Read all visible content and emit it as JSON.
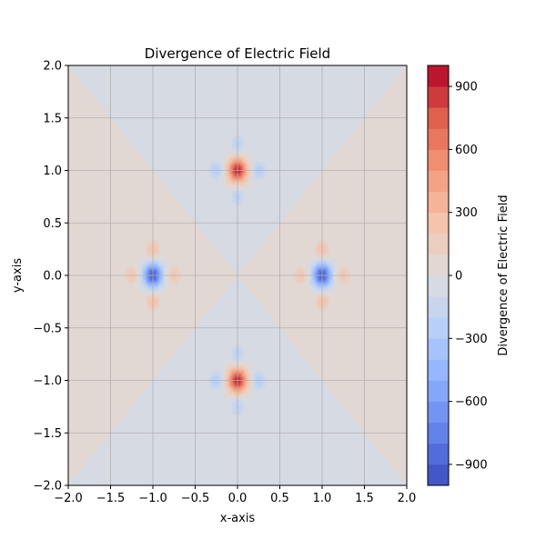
{
  "chart_data": {
    "type": "heatmap",
    "title": "Divergence of Electric Field",
    "xlabel": "x-axis",
    "ylabel": "y-axis",
    "xlim": [
      -2,
      2
    ],
    "ylim": [
      -2,
      2
    ],
    "x_ticks": [
      -2.0,
      -1.5,
      -1.0,
      -0.5,
      0.0,
      0.5,
      1.0,
      1.5,
      2.0
    ],
    "y_ticks": [
      -2.0,
      -1.5,
      -1.0,
      -0.5,
      0.0,
      0.5,
      1.0,
      1.5,
      2.0
    ],
    "x_tick_labels": [
      "−2.0",
      "−1.5",
      "−1.0",
      "−0.5",
      "0.0",
      "0.5",
      "1.0",
      "1.5",
      "2.0"
    ],
    "y_tick_labels": [
      "−2.0",
      "−1.5",
      "−1.0",
      "−0.5",
      "0.0",
      "0.5",
      "1.0",
      "1.5",
      "2.0"
    ],
    "grid": true,
    "colormap": "coolwarm",
    "colorbar": {
      "label": "Divergence of Electric Field",
      "range": [
        -1000,
        1000
      ],
      "ticks": [
        -900,
        -600,
        -300,
        0,
        300,
        600,
        900
      ],
      "tick_labels": [
        "−900",
        "−600",
        "−300",
        "0",
        "300",
        "600",
        "900"
      ],
      "levels": 20
    },
    "sources": [
      {
        "x": 0,
        "y": 1,
        "peak": 950
      },
      {
        "x": 0,
        "y": -1,
        "peak": 950
      },
      {
        "x": -1,
        "y": 0,
        "peak": -950
      },
      {
        "x": 1,
        "y": 0,
        "peak": -950
      }
    ],
    "background_regions": [
      {
        "region": "|y| > |x|",
        "level": "slightly negative"
      },
      {
        "region": "|x| > |y|",
        "level": "slightly positive"
      }
    ]
  }
}
